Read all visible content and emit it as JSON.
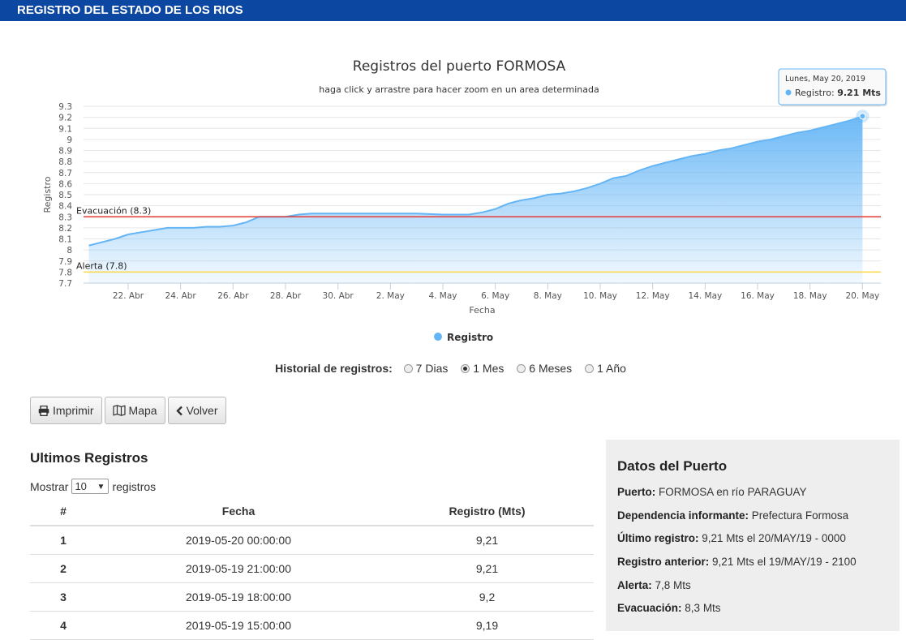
{
  "header": {
    "title": "REGISTRO DEL ESTADO DE LOS RIOS"
  },
  "chart_data": {
    "type": "area",
    "title": "Registros del puerto FORMOSA",
    "subtitle": "haga click y arrastre para hacer zoom en un area determinada",
    "xlabel": "Fecha",
    "ylabel": "Registro",
    "ylim": [
      7.7,
      9.3
    ],
    "y_ticks": [
      "7.7",
      "7.8",
      "7.9",
      "8",
      "8.1",
      "8.2",
      "8.3",
      "8.4",
      "8.5",
      "8.6",
      "8.7",
      "8.8",
      "8.9",
      "9",
      "9.1",
      "9.2",
      "9.3"
    ],
    "x_tick_labels": [
      "22. Abr",
      "24. Abr",
      "26. Abr",
      "28. Abr",
      "30. Abr",
      "2. May",
      "4. May",
      "6. May",
      "8. May",
      "10. May",
      "12. May",
      "14. May",
      "16. May",
      "18. May",
      "20. May"
    ],
    "x_tick_days": [
      22,
      24,
      26,
      28,
      30,
      32,
      34,
      36,
      38,
      40,
      42,
      44,
      46,
      48,
      50
    ],
    "x_note": "x values are days of April 2019 (32 = 2. May)",
    "x_range": [
      20.3,
      50.7
    ],
    "grid": true,
    "legend_position": "bottom",
    "series": [
      {
        "name": "Registro",
        "color": "#64b5f6",
        "x": [
          20.5,
          21,
          21.5,
          22,
          22.5,
          23,
          23.5,
          24,
          24.5,
          25,
          25.5,
          26,
          26.5,
          27,
          27.5,
          28,
          28.5,
          29,
          30,
          31,
          32,
          33,
          34,
          35,
          35.5,
          36,
          36.5,
          37,
          37.5,
          38,
          38.5,
          39,
          39.5,
          40,
          40.5,
          41,
          41.5,
          42,
          42.5,
          43,
          43.5,
          44,
          44.5,
          45,
          45.5,
          46,
          46.5,
          47,
          47.5,
          48,
          48.5,
          49,
          49.5,
          50
        ],
        "values": [
          8.04,
          8.07,
          8.1,
          8.14,
          8.16,
          8.18,
          8.2,
          8.2,
          8.2,
          8.21,
          8.21,
          8.22,
          8.25,
          8.3,
          8.3,
          8.3,
          8.32,
          8.33,
          8.33,
          8.33,
          8.33,
          8.33,
          8.32,
          8.32,
          8.34,
          8.37,
          8.42,
          8.45,
          8.47,
          8.5,
          8.51,
          8.53,
          8.56,
          8.6,
          8.65,
          8.67,
          8.72,
          8.76,
          8.79,
          8.82,
          8.85,
          8.87,
          8.9,
          8.92,
          8.95,
          8.98,
          9.0,
          9.03,
          9.06,
          9.08,
          9.11,
          9.14,
          9.17,
          9.21
        ]
      }
    ],
    "plot_lines": [
      {
        "label": "Evacuación (8.3)",
        "value": 8.3,
        "color": "#e53935"
      },
      {
        "label": "Alerta (7.8)",
        "value": 7.8,
        "color": "#ffd740"
      }
    ],
    "tooltip": {
      "date": "Lunes, May 20, 2019",
      "series": "Registro",
      "value_text": "9.21 Mts",
      "x": 50,
      "y": 9.21
    }
  },
  "history": {
    "label": "Historial de registros:",
    "options": [
      {
        "label": "7 Dias",
        "checked": false
      },
      {
        "label": "1 Mes",
        "checked": true
      },
      {
        "label": "6 Meses",
        "checked": false
      },
      {
        "label": "1 Año",
        "checked": false
      }
    ]
  },
  "buttons": {
    "print": "Imprimir",
    "map": "Mapa",
    "back": "Volver"
  },
  "ultimos": {
    "title": "Ultimos Registros",
    "show_prefix": "Mostrar",
    "show_value": "10",
    "show_suffix": "registros",
    "columns": [
      "#",
      "Fecha",
      "Registro (Mts)"
    ],
    "rows": [
      [
        "1",
        "2019-05-20 00:00:00",
        "9,21"
      ],
      [
        "2",
        "2019-05-19 21:00:00",
        "9,21"
      ],
      [
        "3",
        "2019-05-19 18:00:00",
        "9,2"
      ],
      [
        "4",
        "2019-05-19 15:00:00",
        "9,19"
      ]
    ]
  },
  "datos": {
    "title": "Datos del Puerto",
    "items": [
      {
        "label": "Puerto:",
        "value": "FORMOSA en río PARAGUAY"
      },
      {
        "label": "Dependencia informante:",
        "value": "Prefectura Formosa"
      },
      {
        "label": "Último registro:",
        "value": "9,21 Mts el 20/MAY/19 - 0000"
      },
      {
        "label": "Registro anterior:",
        "value": "9,21 Mts el 19/MAY/19 - 2100"
      },
      {
        "label": "Alerta:",
        "value": "7,8 Mts"
      },
      {
        "label": "Evacuación:",
        "value": "8,3 Mts"
      }
    ]
  }
}
